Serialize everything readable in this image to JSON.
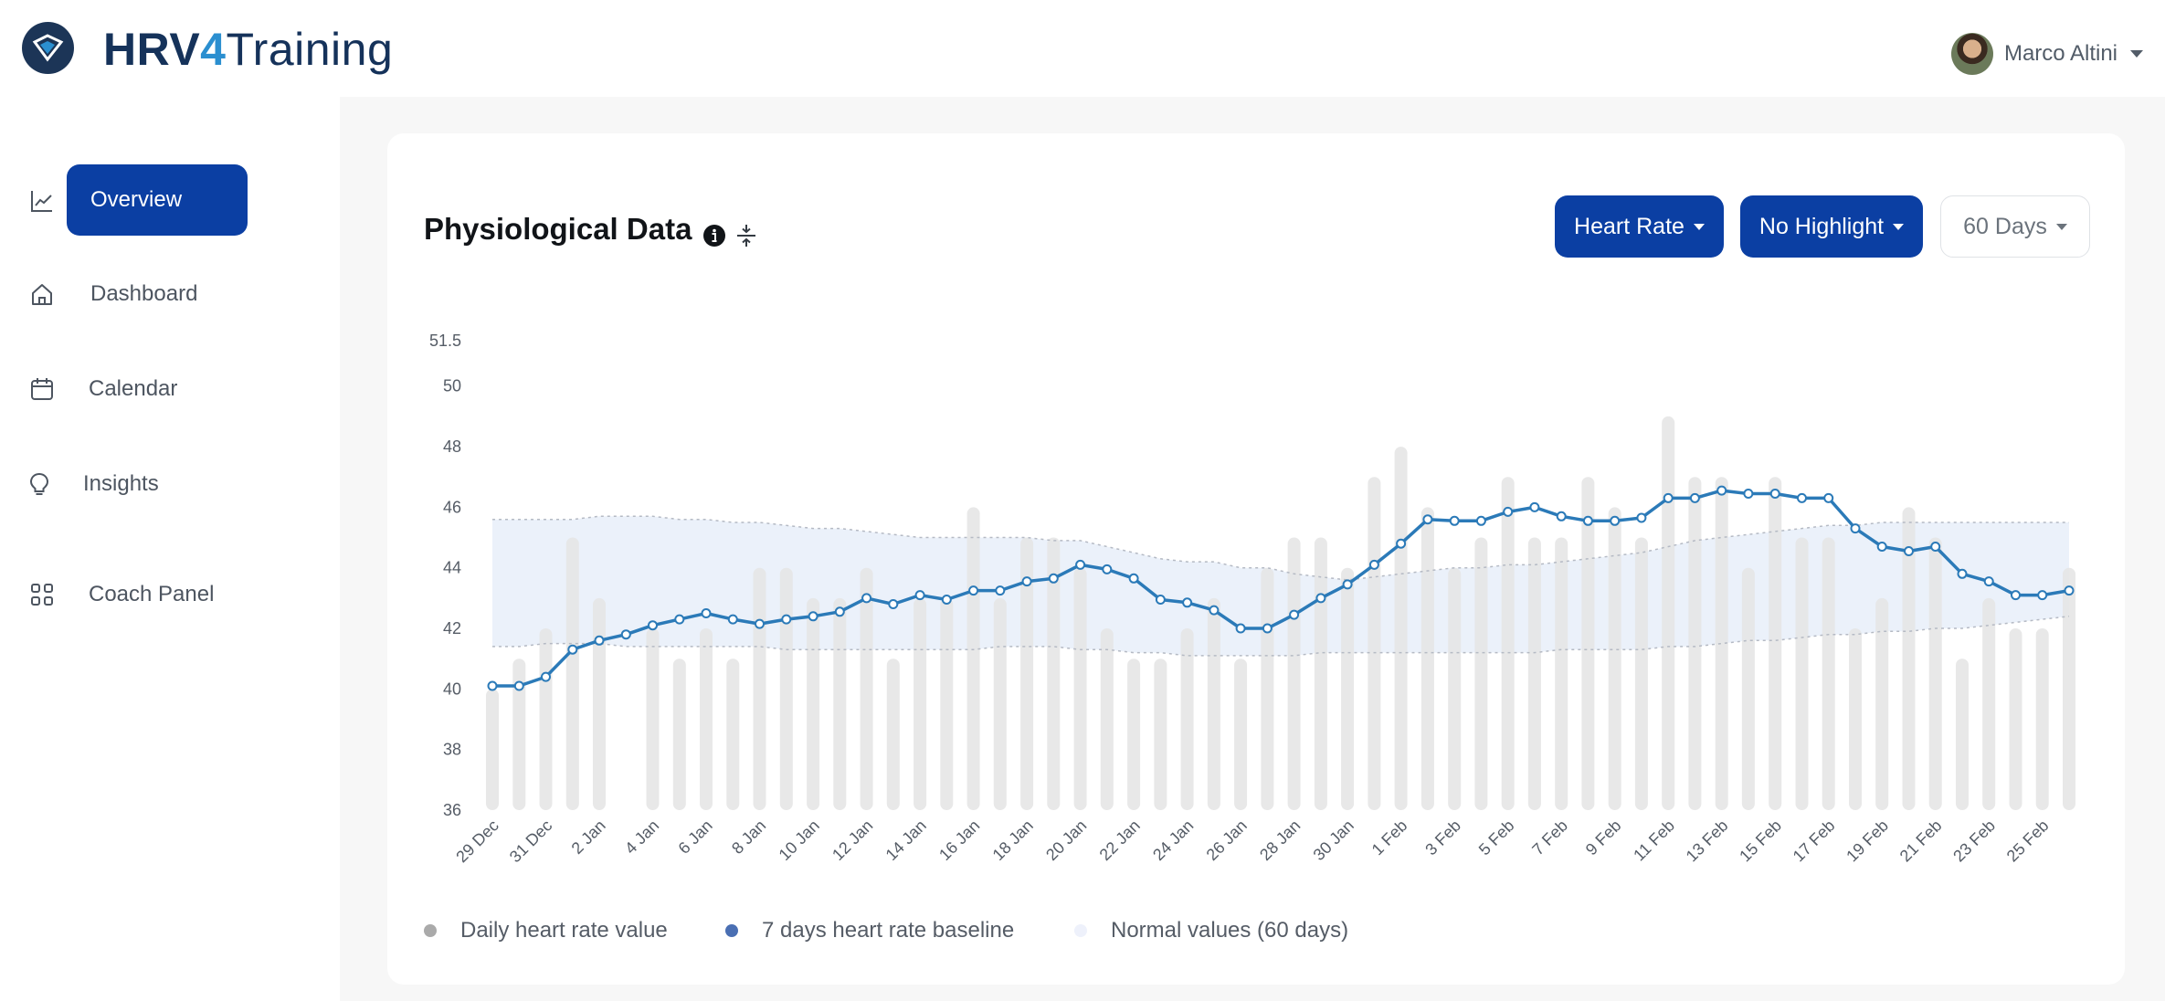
{
  "brand": {
    "part1": "HRV",
    "part2": "4",
    "part3": "Training"
  },
  "user": {
    "name": "Marco Altini"
  },
  "sidebar": {
    "items": [
      {
        "label": "Overview",
        "icon": "line-chart-icon"
      },
      {
        "label": "Dashboard",
        "icon": "home-icon"
      },
      {
        "label": "Calendar",
        "icon": "calendar-icon"
      },
      {
        "label": "Insights",
        "icon": "lightbulb-icon"
      },
      {
        "label": "Coach Panel",
        "icon": "grid-icon"
      }
    ]
  },
  "card": {
    "title": "Physiological Data"
  },
  "controls": {
    "metric": "Heart Rate",
    "highlight": "No Highlight",
    "range": "60 Days"
  },
  "colors": {
    "accent": "#0b3fa3",
    "baseline": "#2b7ab8",
    "bars": "#e6e6e6",
    "band": "#e8eef9"
  },
  "chart_data": {
    "type": "bar",
    "y_ticks": [
      "51.5",
      "50",
      "48",
      "46",
      "44",
      "42",
      "40",
      "38",
      "36"
    ],
    "ylim": [
      36,
      51.5
    ],
    "x_tick_labels": [
      "29 Dec",
      "31 Dec",
      "2 Jan",
      "4 Jan",
      "6 Jan",
      "8 Jan",
      "10 Jan",
      "12 Jan",
      "14 Jan",
      "16 Jan",
      "18 Jan",
      "20 Jan",
      "22 Jan",
      "24 Jan",
      "26 Jan",
      "28 Jan",
      "30 Jan",
      "1 Feb",
      "3 Feb",
      "5 Feb",
      "7 Feb",
      "9 Feb",
      "11 Feb",
      "13 Feb",
      "15 Feb",
      "17 Feb",
      "19 Feb",
      "21 Feb",
      "23 Feb",
      "25 Feb"
    ],
    "series": [
      {
        "name": "Daily heart rate value",
        "values": [
          40,
          41,
          42,
          45,
          43,
          36,
          42,
          41,
          42,
          41,
          44,
          44,
          43,
          43,
          44,
          41,
          43,
          43,
          46,
          43,
          45,
          45,
          44,
          42,
          41,
          41,
          42,
          43,
          41,
          44,
          45,
          45,
          44,
          47,
          48,
          46,
          44,
          45,
          47,
          45,
          45,
          47,
          46,
          45,
          49,
          47,
          47,
          44,
          47,
          45,
          45,
          42,
          43,
          46,
          45,
          41,
          43,
          42,
          42,
          44
        ]
      },
      {
        "name": "7 days heart rate baseline",
        "values": [
          40.1,
          40.1,
          40.4,
          41.3,
          41.6,
          41.8,
          42.1,
          42.3,
          42.5,
          42.3,
          42.15,
          42.3,
          42.4,
          42.55,
          43,
          42.8,
          43.1,
          42.95,
          43.25,
          43.25,
          43.55,
          43.65,
          44.1,
          43.95,
          43.65,
          42.95,
          42.85,
          42.6,
          42,
          42,
          42.45,
          43,
          43.45,
          44.1,
          44.8,
          45.6,
          45.55,
          45.55,
          45.85,
          46,
          45.7,
          45.55,
          45.55,
          45.65,
          46.3,
          46.3,
          46.55,
          46.45,
          46.45,
          46.3,
          46.3,
          45.3,
          44.7,
          44.55,
          44.7,
          43.8,
          43.55,
          43.1,
          43.1,
          43.25
        ]
      },
      {
        "name": "Normal values (60 days)",
        "upper": [
          45.6,
          45.6,
          45.6,
          45.6,
          45.7,
          45.7,
          45.7,
          45.6,
          45.6,
          45.5,
          45.5,
          45.4,
          45.3,
          45.3,
          45.2,
          45.1,
          45,
          45,
          45,
          45,
          45,
          44.9,
          44.9,
          44.7,
          44.5,
          44.3,
          44.2,
          44.2,
          44,
          44,
          43.8,
          43.7,
          43.6,
          43.7,
          43.8,
          43.9,
          44,
          44,
          44.1,
          44.1,
          44.2,
          44.3,
          44.4,
          44.5,
          44.7,
          44.9,
          45,
          45.1,
          45.2,
          45.3,
          45.4,
          45.4,
          45.5,
          45.5,
          45.5,
          45.5,
          45.5,
          45.5,
          45.5,
          45.5
        ],
        "lower": [
          41.4,
          41.4,
          41.5,
          41.5,
          41.5,
          41.4,
          41.4,
          41.4,
          41.4,
          41.4,
          41.4,
          41.3,
          41.3,
          41.3,
          41.3,
          41.3,
          41.3,
          41.3,
          41.3,
          41.4,
          41.4,
          41.4,
          41.3,
          41.3,
          41.2,
          41.2,
          41.1,
          41.1,
          41.1,
          41.1,
          41.1,
          41.2,
          41.2,
          41.2,
          41.2,
          41.2,
          41.2,
          41.2,
          41.2,
          41.2,
          41.3,
          41.3,
          41.3,
          41.3,
          41.4,
          41.4,
          41.5,
          41.6,
          41.6,
          41.7,
          41.8,
          41.8,
          41.9,
          41.9,
          42,
          42,
          42.1,
          42.2,
          42.3,
          42.4
        ]
      }
    ]
  }
}
